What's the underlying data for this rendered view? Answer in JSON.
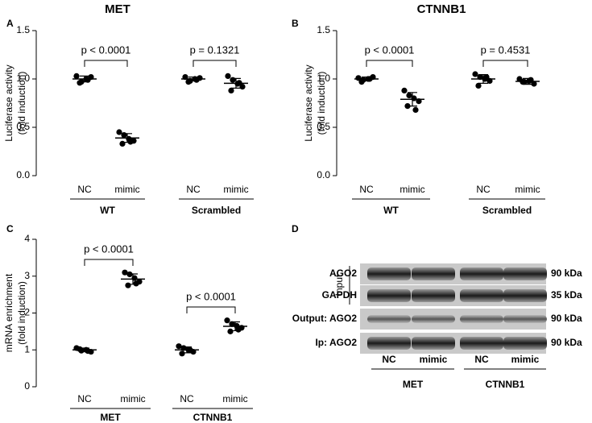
{
  "chart_data": [
    {
      "type": "dot",
      "panel": "A",
      "title": "MET",
      "y_label": [
        "Luciferase activity",
        "(fold induction)"
      ],
      "categories": [
        "NC",
        "mimic",
        "NC",
        "mimic"
      ],
      "groups": [
        "WT",
        "Scrambled"
      ],
      "points": [
        [
          1.03,
          0.97,
          1.0,
          1.02,
          0.96,
          0.99
        ],
        [
          0.45,
          0.42,
          0.38,
          0.36,
          0.33,
          0.35
        ],
        [
          1.02,
          0.98,
          1.0,
          1.01,
          0.97,
          0.99
        ],
        [
          1.03,
          0.99,
          0.95,
          0.92,
          0.88,
          0.96
        ]
      ],
      "means": [
        1.0,
        0.39,
        1.0,
        0.955
      ],
      "sds": [
        0.03,
        0.045,
        0.02,
        0.05
      ],
      "annotations": [
        "p < 0.0001",
        "p = 0.1321"
      ],
      "color": "#000000",
      "ylim": [
        0,
        1.5
      ],
      "yticks": [
        {
          "value": 0,
          "label": "0.0"
        },
        0.5,
        {
          "value": 1,
          "label": "1.0"
        },
        1.5
      ]
    },
    {
      "type": "dot",
      "panel": "B",
      "title": "CTNNB1",
      "y_label": [
        "Luciferase activity",
        "(fold induction)"
      ],
      "categories": [
        "NC",
        "mimic",
        "NC",
        "mimic"
      ],
      "groups": [
        "WT",
        "Scrambled"
      ],
      "points": [
        [
          1.01,
          0.99,
          1.0,
          1.02,
          0.97,
          1.0
        ],
        [
          0.88,
          0.83,
          0.8,
          0.77,
          0.72,
          0.68
        ],
        [
          1.05,
          1.02,
          1.0,
          0.98,
          0.93,
          1.02
        ],
        [
          1.0,
          0.97,
          0.98,
          0.95,
          0.97,
          0.99
        ]
      ],
      "means": [
        1.0,
        0.79,
        1.0,
        0.975
      ],
      "sds": [
        0.02,
        0.07,
        0.045,
        0.03
      ],
      "annotations": [
        "p < 0.0001",
        "p = 0.4531"
      ],
      "color": "#000000",
      "ylim": [
        0,
        1.5
      ],
      "yticks": [
        {
          "value": 0,
          "label": "0.0"
        },
        0.5,
        {
          "value": 1,
          "label": "1.0"
        },
        1.5
      ]
    },
    {
      "type": "dot",
      "panel": "C",
      "y_label": [
        "mRNA enrichment",
        "(fold induction)"
      ],
      "categories": [
        "NC",
        "mimic",
        "NC",
        "mimic"
      ],
      "groups": [
        "MET",
        "CTNNB1"
      ],
      "points": [
        [
          1.05,
          0.98,
          1.0,
          0.95,
          1.02,
          0.97
        ],
        [
          3.1,
          3.05,
          2.95,
          2.85,
          2.75,
          2.8
        ],
        [
          1.1,
          1.05,
          1.0,
          0.95,
          0.9,
          1.0
        ],
        [
          1.8,
          1.7,
          1.65,
          1.6,
          1.5,
          1.55
        ]
      ],
      "means": [
        1.0,
        2.92,
        1.0,
        1.64
      ],
      "sds": [
        0.05,
        0.14,
        0.08,
        0.12
      ],
      "annotations": [
        "p < 0.0001",
        "p < 0.0001"
      ],
      "color": "#000000",
      "ylim": [
        0,
        4
      ],
      "yticks": [
        0,
        1,
        2,
        3,
        4
      ]
    }
  ],
  "blot": {
    "panel": "D",
    "input_label": "Input",
    "rows": [
      {
        "label": "AGO2",
        "size": "90 kDa"
      },
      {
        "label": "GAPDH",
        "size": "35 kDa"
      },
      {
        "label": "Output: AGO2",
        "size": "90 kDa"
      },
      {
        "label": "Ip: AGO2",
        "size": "90 kDa"
      }
    ],
    "lanes": [
      "NC",
      "mimic",
      "NC",
      "mimic"
    ],
    "groups": [
      "MET",
      "CTNNB1"
    ]
  }
}
